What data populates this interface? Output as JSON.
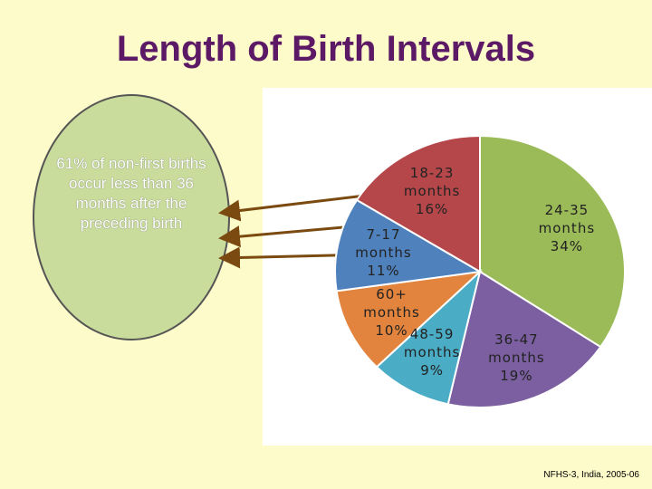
{
  "chart_data": {
    "type": "pie",
    "title": "Length of Birth Intervals",
    "categories": [
      "24-35 months",
      "36-47 months",
      "48-59 months",
      "60+ months",
      "7-17 months",
      "18-23 months"
    ],
    "values": [
      34,
      19,
      9,
      10,
      11,
      16
    ],
    "value_labels": [
      "34%",
      "19%",
      "9%",
      "10%",
      "11%",
      "16%"
    ],
    "colors": [
      "#9bbb59",
      "#7b5fa0",
      "#4bacc6",
      "#e2843d",
      "#4f81bd",
      "#b5474a"
    ],
    "callout": "61% of non-first births occur less than 36 months after the preceding birth",
    "source": "NFHS-3, India, 2005-06"
  }
}
